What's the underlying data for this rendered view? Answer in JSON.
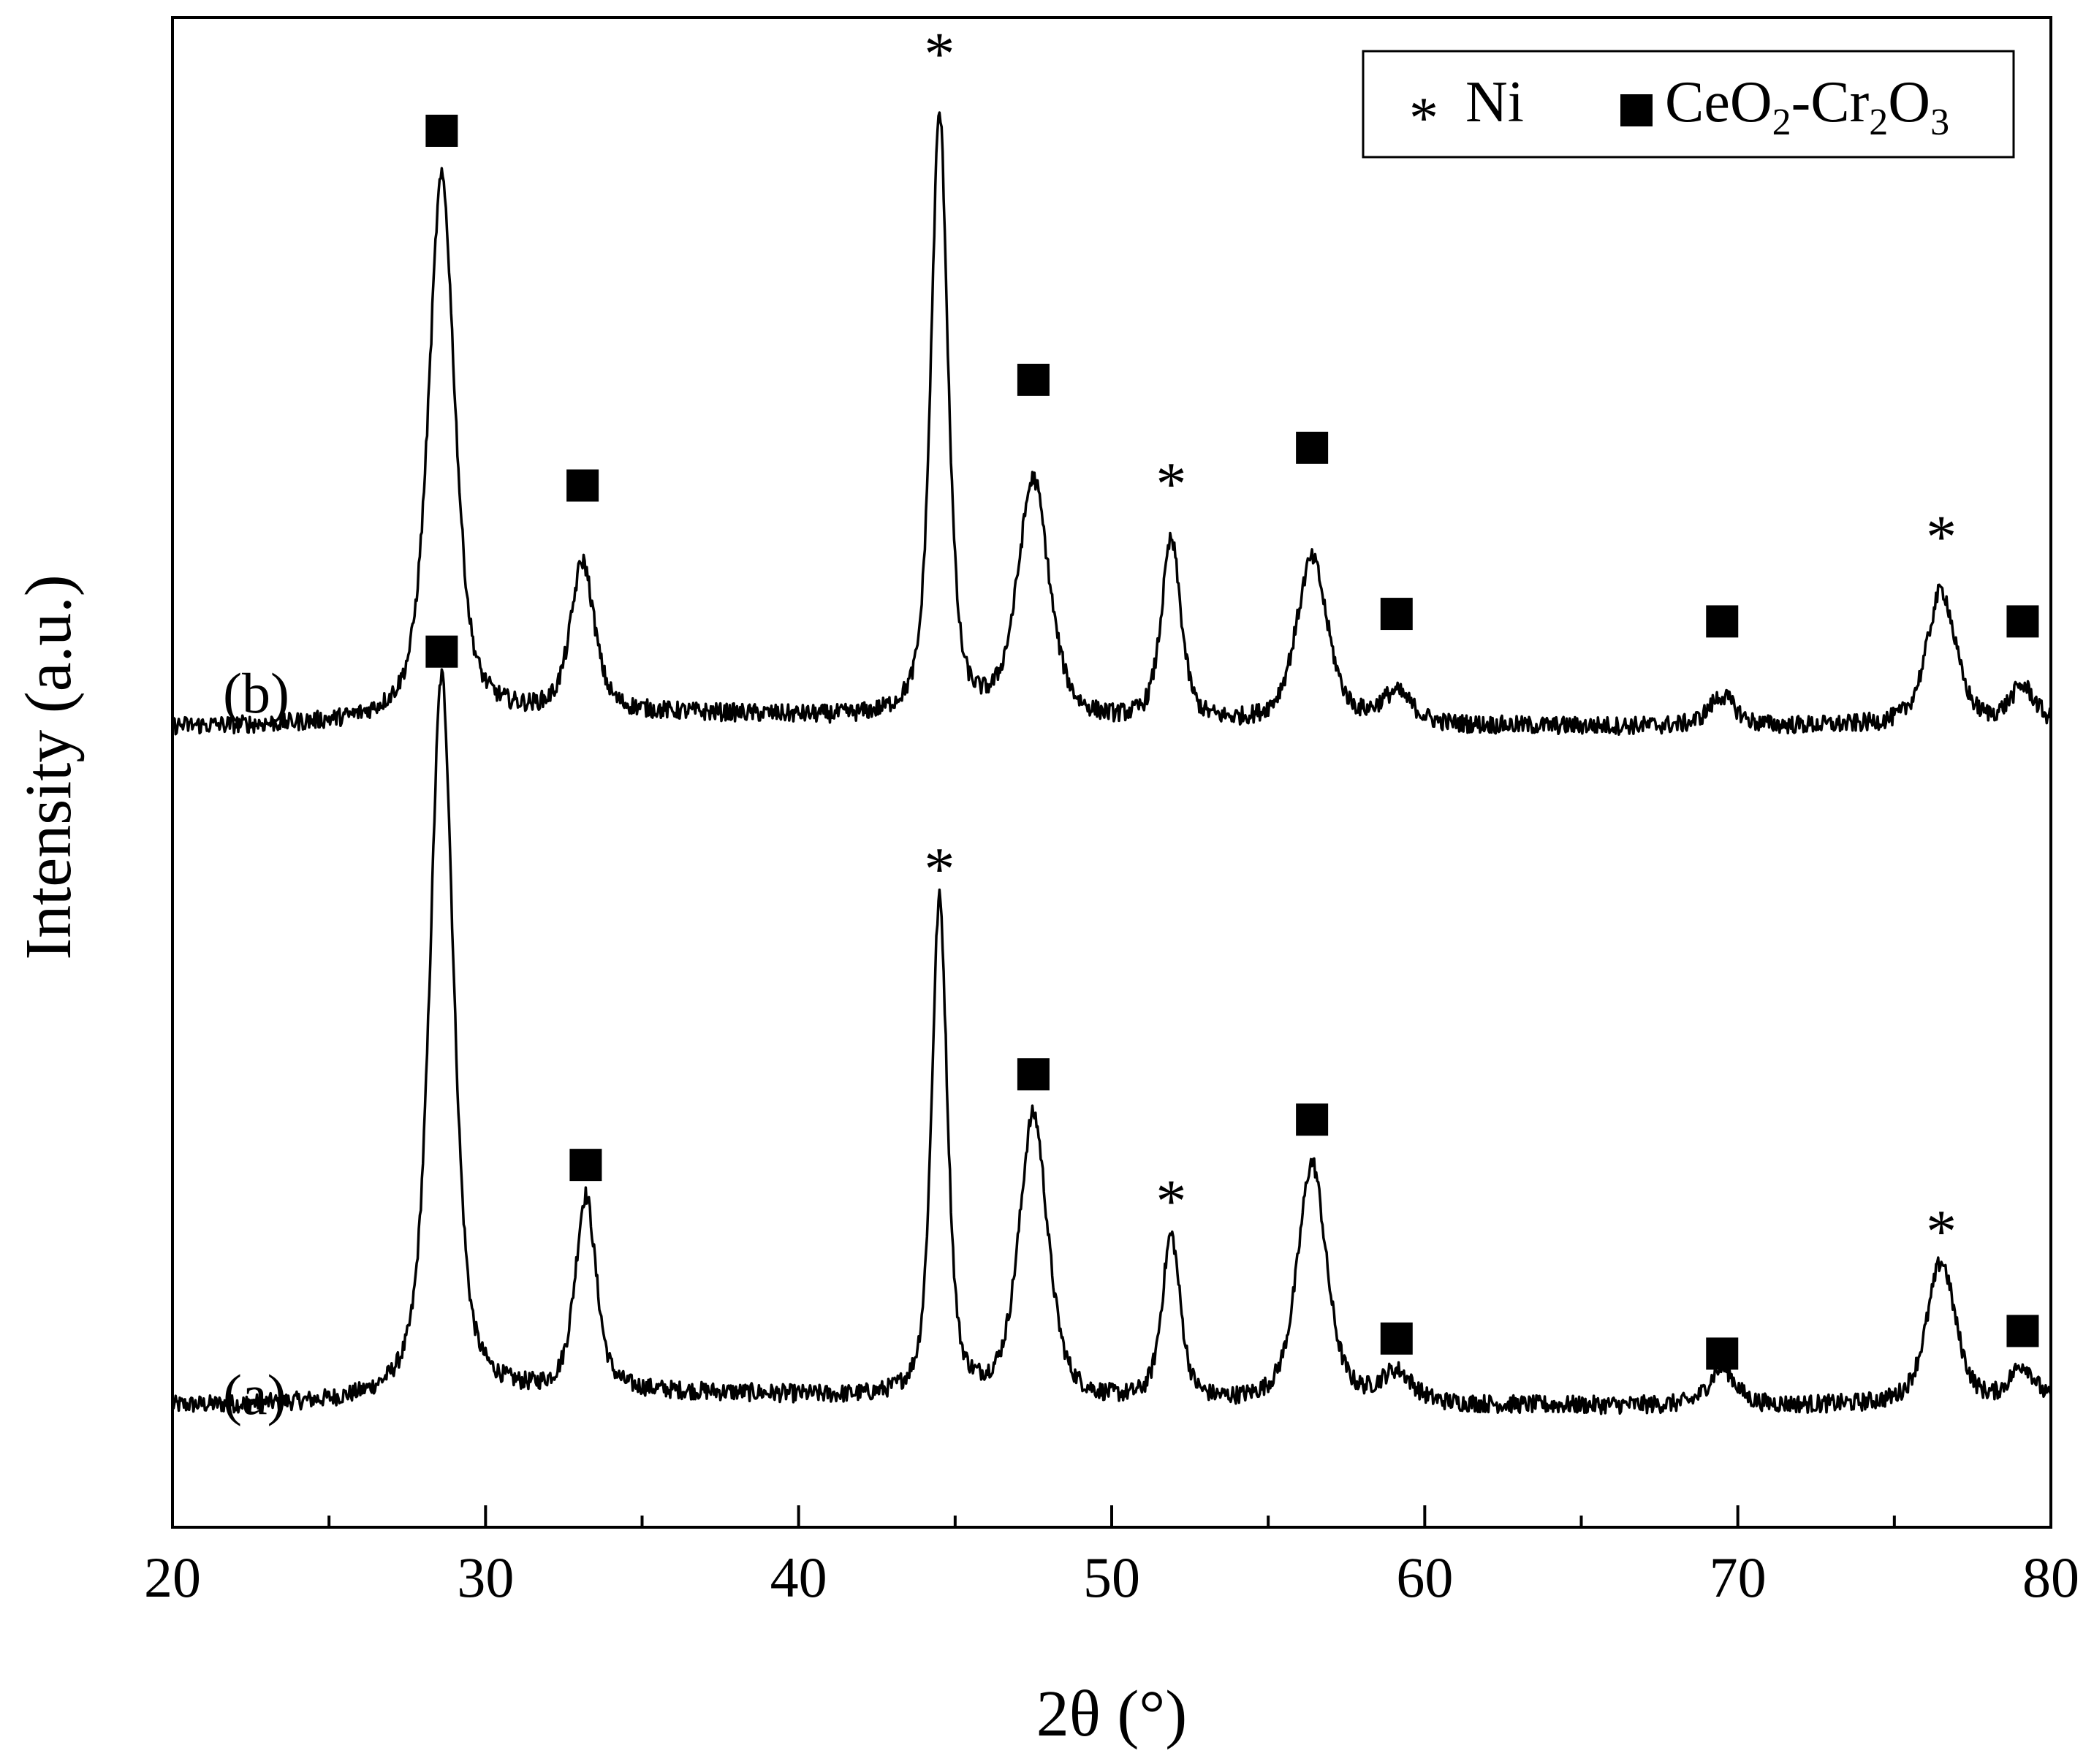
{
  "chart_data": {
    "type": "line",
    "xlabel": "2θ (°)",
    "ylabel": "Intensity (a.u.)",
    "xlim": [
      20,
      80
    ],
    "xticks_major": [
      20,
      30,
      40,
      50,
      60,
      70,
      80
    ],
    "xticks_minor": [
      25,
      35,
      45,
      55,
      65,
      75
    ],
    "y_ticks_shown": false,
    "grid": false,
    "legend_position": "top-right",
    "legend": [
      {
        "marker": "asterisk",
        "label": "Ni"
      },
      {
        "marker": "square",
        "label_parts": [
          "CeO",
          "2",
          "-Cr",
          "2",
          "O",
          "3"
        ]
      }
    ],
    "series": [
      {
        "name": "(a)",
        "baseline": 0.08,
        "noise": 0.012,
        "peaks": [
          {
            "x": 28.6,
            "height": 0.48,
            "fwhm": 0.9,
            "phase": "CeO2-Cr2O3"
          },
          {
            "x": 33.2,
            "height": 0.13,
            "fwhm": 0.8,
            "phase": "CeO2-Cr2O3"
          },
          {
            "x": 44.5,
            "height": 0.33,
            "fwhm": 0.6,
            "phase": "Ni"
          },
          {
            "x": 47.5,
            "height": 0.19,
            "fwhm": 1.1,
            "phase": "CeO2-Cr2O3"
          },
          {
            "x": 51.9,
            "height": 0.11,
            "fwhm": 0.7,
            "phase": "Ni"
          },
          {
            "x": 56.4,
            "height": 0.16,
            "fwhm": 1.1,
            "phase": "CeO2-Cr2O3"
          },
          {
            "x": 59.1,
            "height": 0.02,
            "fwhm": 1.2,
            "phase": "CeO2-Cr2O3"
          },
          {
            "x": 69.5,
            "height": 0.025,
            "fwhm": 1.0,
            "phase": "CeO2-Cr2O3"
          },
          {
            "x": 76.5,
            "height": 0.095,
            "fwhm": 1.1,
            "phase": "Ni"
          },
          {
            "x": 79.1,
            "height": 0.025,
            "fwhm": 1.0,
            "phase": "CeO2-Cr2O3"
          }
        ]
      },
      {
        "name": "(b)",
        "baseline": 0.53,
        "noise": 0.012,
        "peaks": [
          {
            "x": 28.6,
            "height": 0.36,
            "fwhm": 1.0,
            "phase": "CeO2-Cr2O3"
          },
          {
            "x": 33.1,
            "height": 0.1,
            "fwhm": 0.9,
            "phase": "CeO2-Cr2O3"
          },
          {
            "x": 44.5,
            "height": 0.4,
            "fwhm": 0.65,
            "phase": "Ni"
          },
          {
            "x": 47.5,
            "height": 0.16,
            "fwhm": 1.2,
            "phase": "CeO2-Cr2O3"
          },
          {
            "x": 51.9,
            "height": 0.12,
            "fwhm": 0.75,
            "phase": "Ni"
          },
          {
            "x": 56.4,
            "height": 0.11,
            "fwhm": 1.2,
            "phase": "CeO2-Cr2O3"
          },
          {
            "x": 59.1,
            "height": 0.02,
            "fwhm": 1.2,
            "phase": "CeO2-Cr2O3"
          },
          {
            "x": 69.5,
            "height": 0.02,
            "fwhm": 1.0,
            "phase": "CeO2-Cr2O3"
          },
          {
            "x": 76.5,
            "height": 0.09,
            "fwhm": 1.1,
            "phase": "Ni"
          },
          {
            "x": 79.1,
            "height": 0.025,
            "fwhm": 1.0,
            "phase": "CeO2-Cr2O3"
          }
        ]
      }
    ],
    "series_labels": [
      "(a)",
      "(b)"
    ],
    "markers": [
      {
        "series": "(a)",
        "x": 28.6,
        "y": 0.58,
        "symbol": "square"
      },
      {
        "series": "(a)",
        "x": 33.2,
        "y": 0.24,
        "symbol": "square"
      },
      {
        "series": "(a)",
        "x": 44.5,
        "y": 0.44,
        "symbol": "asterisk"
      },
      {
        "series": "(a)",
        "x": 47.5,
        "y": 0.3,
        "symbol": "square"
      },
      {
        "series": "(a)",
        "x": 51.9,
        "y": 0.22,
        "symbol": "asterisk"
      },
      {
        "series": "(a)",
        "x": 56.4,
        "y": 0.27,
        "symbol": "square"
      },
      {
        "series": "(a)",
        "x": 59.1,
        "y": 0.125,
        "symbol": "square"
      },
      {
        "series": "(a)",
        "x": 69.5,
        "y": 0.115,
        "symbol": "square"
      },
      {
        "series": "(a)",
        "x": 76.5,
        "y": 0.2,
        "symbol": "asterisk"
      },
      {
        "series": "(a)",
        "x": 79.1,
        "y": 0.13,
        "symbol": "square"
      },
      {
        "series": "(b)",
        "x": 28.6,
        "y": 0.925,
        "symbol": "square"
      },
      {
        "series": "(b)",
        "x": 33.1,
        "y": 0.69,
        "symbol": "square"
      },
      {
        "series": "(b)",
        "x": 44.5,
        "y": 0.98,
        "symbol": "asterisk"
      },
      {
        "series": "(b)",
        "x": 47.5,
        "y": 0.76,
        "symbol": "square"
      },
      {
        "series": "(b)",
        "x": 51.9,
        "y": 0.695,
        "symbol": "asterisk"
      },
      {
        "series": "(b)",
        "x": 56.4,
        "y": 0.715,
        "symbol": "square"
      },
      {
        "series": "(b)",
        "x": 59.1,
        "y": 0.605,
        "symbol": "square"
      },
      {
        "series": "(b)",
        "x": 69.5,
        "y": 0.6,
        "symbol": "square"
      },
      {
        "series": "(b)",
        "x": 76.5,
        "y": 0.66,
        "symbol": "asterisk"
      },
      {
        "series": "(b)",
        "x": 79.1,
        "y": 0.6,
        "symbol": "square"
      }
    ],
    "ylim": [
      0,
      1.0
    ],
    "colors": {
      "line": "#000000",
      "background": "#ffffff"
    }
  }
}
